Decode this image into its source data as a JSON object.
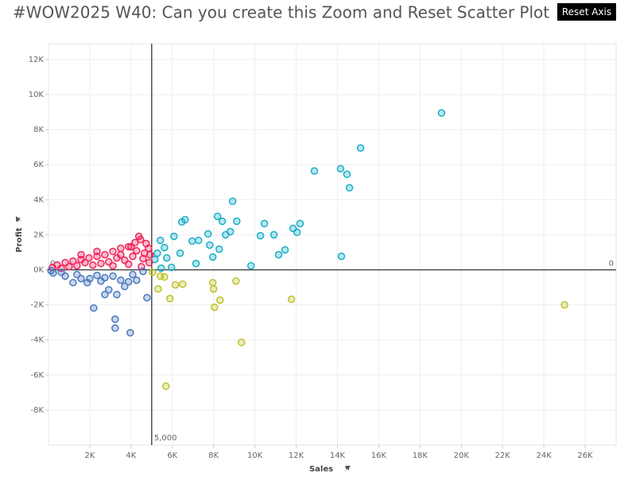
{
  "reset_button": "Reset Axis",
  "chart_data": {
    "type": "scatter",
    "title": "#WOW2025 W40: Can you create this Zoom and Reset Scatter Plot",
    "x_label": "Sales",
    "y_label": "Profit",
    "xlim": [
      0,
      27500
    ],
    "ylim": [
      -10000,
      12900
    ],
    "xticks": [
      {
        "value": 2000,
        "label": "2K"
      },
      {
        "value": 4000,
        "label": "4K"
      },
      {
        "value": 6000,
        "label": "6K"
      },
      {
        "value": 8000,
        "label": "8K"
      },
      {
        "value": 10000,
        "label": "10K"
      },
      {
        "value": 12000,
        "label": "12K"
      },
      {
        "value": 14000,
        "label": "14K"
      },
      {
        "value": 16000,
        "label": "16K"
      },
      {
        "value": 18000,
        "label": "18K"
      },
      {
        "value": 20000,
        "label": "20K"
      },
      {
        "value": 22000,
        "label": "22K"
      },
      {
        "value": 24000,
        "label": "24K"
      },
      {
        "value": 26000,
        "label": "26K"
      }
    ],
    "yticks": [
      {
        "value": -8000,
        "label": "-8K"
      },
      {
        "value": -6000,
        "label": "-6K"
      },
      {
        "value": -4000,
        "label": "-4K"
      },
      {
        "value": -2000,
        "label": "-2K"
      },
      {
        "value": 0,
        "label": "0K"
      },
      {
        "value": 2000,
        "label": "2K"
      },
      {
        "value": 4000,
        "label": "4K"
      },
      {
        "value": 6000,
        "label": "6K"
      },
      {
        "value": 8000,
        "label": "8K"
      },
      {
        "value": 10000,
        "label": "10K"
      },
      {
        "value": 12000,
        "label": "12K"
      }
    ],
    "grid": true,
    "x_reference": {
      "value": 5000,
      "label": "5,000"
    },
    "y_reference": {
      "value": 0,
      "label": "0"
    },
    "series": [
      {
        "color": "#1aaec6",
        "x": [
          19040,
          15120,
          12880,
          14150,
          14460,
          14580,
          8920,
          8190,
          8420,
          9120,
          6620,
          6460,
          12190,
          10460,
          11850,
          12040,
          8810,
          10920,
          10270,
          11460,
          11150,
          14190,
          9810,
          7730,
          7270,
          6080,
          6960,
          8270,
          7960,
          7150,
          5420,
          5620,
          5730,
          6380,
          5270,
          5150,
          5960,
          5460,
          8580,
          7810
        ],
        "values": [
          8950,
          6950,
          5640,
          5770,
          5450,
          4680,
          3910,
          3050,
          2770,
          2770,
          2860,
          2730,
          2640,
          2640,
          2360,
          2140,
          2180,
          2000,
          1950,
          1140,
          860,
          770,
          230,
          2050,
          1680,
          1910,
          1640,
          1180,
          730,
          360,
          1680,
          1270,
          680,
          950,
          950,
          590,
          140,
          90,
          2000,
          1410
        ]
      },
      {
        "color": "#bfc22b",
        "x": [
          25000,
          11770,
          9350,
          9080,
          7960,
          8000,
          8310,
          8040,
          5880,
          5690,
          6150,
          6500,
          5310,
          5620,
          5040,
          5420
        ],
        "values": [
          -2000,
          -1680,
          -4140,
          -640,
          -730,
          -1090,
          -1730,
          -2140,
          -1640,
          -6640,
          -860,
          -820,
          -1090,
          -410,
          -140,
          -360
        ]
      },
      {
        "color": "#f0245a",
        "x": [
          4380,
          4460,
          4190,
          3880,
          3500,
          3120,
          2730,
          2350,
          1960,
          1580,
          1190,
          810,
          420,
          190,
          4650,
          4850,
          4580,
          4080,
          3690,
          3310,
          2920,
          2540,
          2150,
          1770,
          1380,
          1000,
          620,
          4880,
          4270,
          3880,
          3500,
          3120,
          4730,
          2350,
          1580,
          4500,
          4000,
          4920
        ],
        "values": [
          1910,
          1730,
          1550,
          1320,
          1230,
          1050,
          860,
          770,
          680,
          590,
          500,
          410,
          270,
          140,
          950,
          1230,
          640,
          770,
          550,
          680,
          450,
          360,
          270,
          410,
          230,
          180,
          90,
          410,
          1090,
          320,
          860,
          230,
          1500,
          1050,
          860,
          180,
          1320,
          860
        ]
      },
      {
        "color": "#4a78bd",
        "x": [
          2190,
          3230,
          3230,
          3960,
          4770,
          2730,
          3310,
          2920,
          3690,
          3880,
          4270,
          1880,
          1190,
          1580,
          810,
          230,
          2350,
          3120,
          3500,
          2540,
          2730,
          2000,
          1380,
          620,
          4080,
          4580,
          120
        ],
        "values": [
          -2180,
          -2820,
          -3320,
          -3590,
          -1590,
          -1410,
          -1410,
          -1140,
          -950,
          -680,
          -590,
          -730,
          -730,
          -500,
          -360,
          -180,
          -320,
          -360,
          -590,
          -640,
          -450,
          -500,
          -270,
          -140,
          -270,
          -90,
          -45
        ]
      }
    ]
  }
}
